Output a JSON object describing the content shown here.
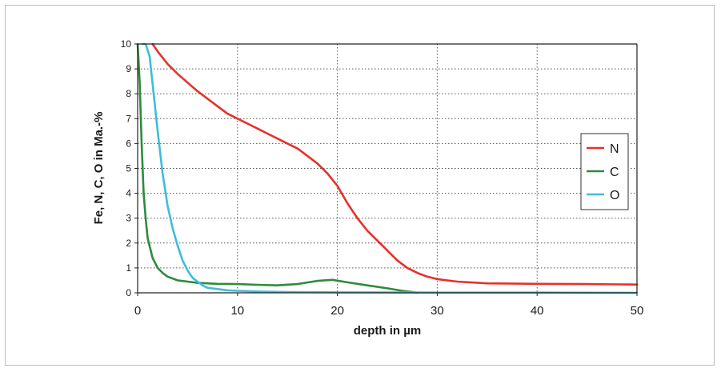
{
  "chart_data": {
    "type": "line",
    "xlabel": "depth in µm",
    "ylabel": "Fe, N, C, O in Ma.-%",
    "xlim": [
      0,
      50
    ],
    "ylim": [
      0,
      10
    ],
    "xticks": [
      0,
      10,
      20,
      30,
      40,
      50
    ],
    "yticks": [
      0,
      1,
      2,
      3,
      4,
      5,
      6,
      7,
      8,
      9,
      10
    ],
    "grid": true,
    "legend_position": "right",
    "series": [
      {
        "name": "N",
        "color": "#e8302a",
        "x": [
          1.5,
          2,
          3,
          4,
          5,
          6,
          7,
          8,
          9,
          10,
          11,
          12,
          13,
          14,
          15,
          16,
          17,
          18,
          19,
          20,
          21,
          22,
          23,
          24,
          25,
          26,
          27,
          28,
          29,
          30,
          32,
          35,
          40,
          45,
          50
        ],
        "y": [
          10,
          9.7,
          9.2,
          8.8,
          8.45,
          8.1,
          7.8,
          7.5,
          7.2,
          7.0,
          6.8,
          6.6,
          6.4,
          6.2,
          6.0,
          5.8,
          5.5,
          5.2,
          4.8,
          4.3,
          3.6,
          3.0,
          2.5,
          2.1,
          1.7,
          1.3,
          1.0,
          0.8,
          0.65,
          0.55,
          0.45,
          0.38,
          0.36,
          0.35,
          0.33
        ]
      },
      {
        "name": "C",
        "color": "#2e8b3e",
        "x": [
          0,
          0.2,
          0.4,
          0.6,
          0.8,
          1,
          1.5,
          2,
          2.5,
          3,
          4,
          5,
          6,
          7,
          8,
          10,
          12,
          14,
          16,
          18,
          19.5,
          21,
          23,
          25,
          26.5,
          27.5,
          28
        ],
        "y": [
          10,
          8.5,
          6,
          4,
          3,
          2.2,
          1.4,
          1.0,
          0.8,
          0.65,
          0.5,
          0.45,
          0.4,
          0.38,
          0.36,
          0.35,
          0.32,
          0.3,
          0.35,
          0.48,
          0.52,
          0.42,
          0.3,
          0.18,
          0.08,
          0.03,
          0
        ]
      },
      {
        "name": "O",
        "color": "#3fbcdc",
        "x": [
          0.5,
          0.8,
          1.2,
          1.6,
          2,
          2.5,
          3,
          3.5,
          4,
          4.5,
          5,
          5.5,
          6,
          6.5,
          7,
          8,
          9,
          10,
          12,
          15,
          20,
          30,
          40,
          50
        ],
        "y": [
          10,
          10,
          9.5,
          8,
          6.5,
          4.8,
          3.5,
          2.6,
          1.9,
          1.3,
          0.9,
          0.6,
          0.45,
          0.3,
          0.2,
          0.15,
          0.1,
          0.08,
          0.05,
          0.03,
          0.02,
          0.01,
          0.01,
          0.0
        ]
      }
    ]
  }
}
